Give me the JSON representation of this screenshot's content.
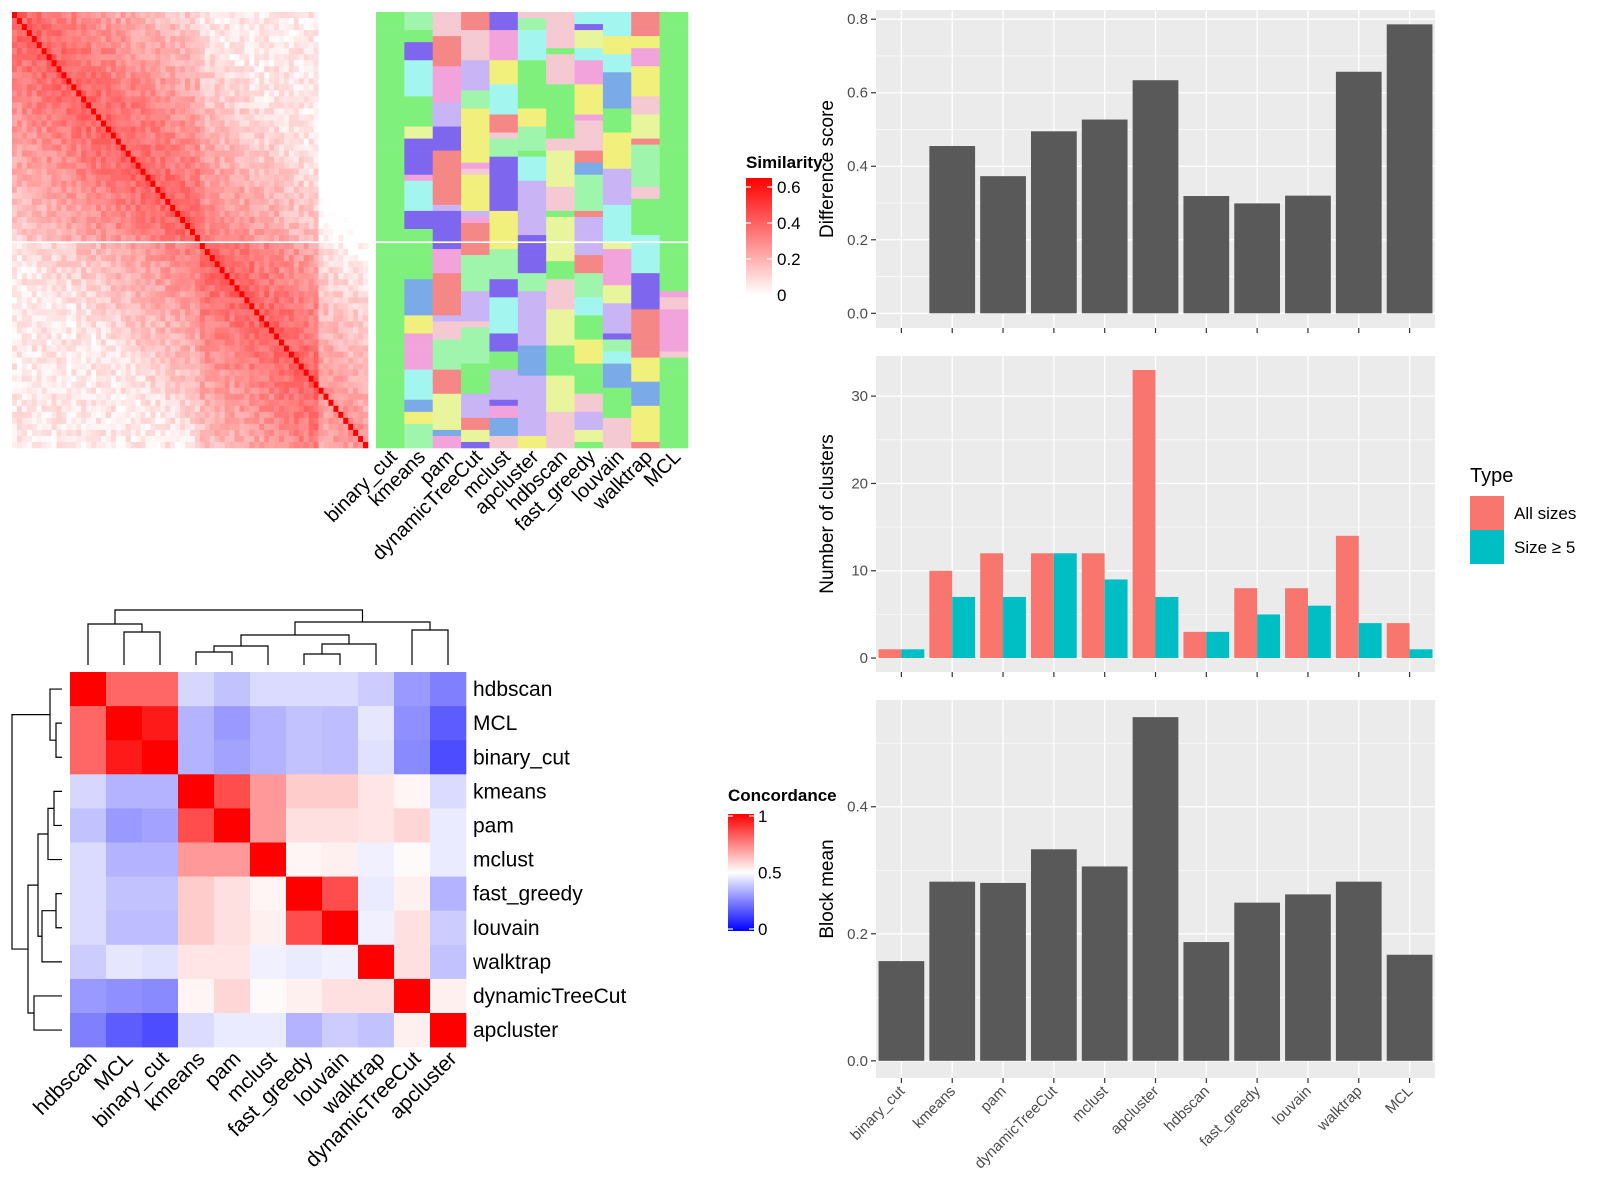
{
  "colors": {
    "panel_bg": "#ebebeb",
    "grid": "#ffffff",
    "bar_dark": "#595959",
    "all_sizes": "#f8766d",
    "size_ge5": "#00bfc4",
    "sim_high": "#ff0000",
    "conc_high": "#ff0000",
    "conc_low": "#0000ff",
    "conc_mid": "#ffffff"
  },
  "similarity_heatmap": {
    "legend_title": "Similarity",
    "legend_ticks": [
      "0",
      "0.2",
      "0.4",
      "0.6"
    ],
    "legend_values": [
      0,
      0.2,
      0.4,
      0.6
    ],
    "n_rows": 72,
    "split_after_row": 38
  },
  "cluster_annotation": {
    "columns": [
      "binary_cut",
      "kmeans",
      "pam",
      "dynamicTreeCut",
      "mclust",
      "apcluster",
      "hdbscan",
      "fast_greedy",
      "louvain",
      "walktrap",
      "MCL"
    ],
    "palette": [
      "#80f07c",
      "#e8f59c",
      "#f5c9d2",
      "#f2a3dc",
      "#a3f5f0",
      "#c9b4f5",
      "#7aabe8",
      "#f2f07c",
      "#f58787",
      "#7f66ee",
      "#9ef5ab"
    ]
  },
  "concordance_heatmap": {
    "legend_title": "Concordance",
    "legend_ticks": [
      "0",
      "0.5",
      "1"
    ],
    "legend_values": [
      0,
      0.5,
      1
    ],
    "methods": [
      "hdbscan",
      "MCL",
      "binary_cut",
      "kmeans",
      "pam",
      "mclust",
      "fast_greedy",
      "louvain",
      "walktrap",
      "dynamicTreeCut",
      "apcluster"
    ],
    "matrix": [
      [
        1.0,
        0.8,
        0.8,
        0.42,
        0.38,
        0.43,
        0.43,
        0.43,
        0.4,
        0.3,
        0.25
      ],
      [
        0.8,
        1.0,
        0.95,
        0.35,
        0.3,
        0.35,
        0.38,
        0.37,
        0.45,
        0.28,
        0.18
      ],
      [
        0.8,
        0.95,
        1.0,
        0.35,
        0.32,
        0.35,
        0.38,
        0.37,
        0.44,
        0.27,
        0.15
      ],
      [
        0.42,
        0.35,
        0.35,
        1.0,
        0.85,
        0.7,
        0.6,
        0.6,
        0.55,
        0.52,
        0.43
      ],
      [
        0.38,
        0.3,
        0.32,
        0.85,
        1.0,
        0.7,
        0.56,
        0.56,
        0.55,
        0.58,
        0.46
      ],
      [
        0.43,
        0.35,
        0.35,
        0.7,
        0.7,
        1.0,
        0.52,
        0.53,
        0.47,
        0.51,
        0.46
      ],
      [
        0.43,
        0.38,
        0.38,
        0.6,
        0.56,
        0.52,
        1.0,
        0.85,
        0.46,
        0.53,
        0.35
      ],
      [
        0.43,
        0.37,
        0.37,
        0.6,
        0.56,
        0.53,
        0.85,
        1.0,
        0.47,
        0.56,
        0.4
      ],
      [
        0.4,
        0.45,
        0.44,
        0.55,
        0.55,
        0.47,
        0.46,
        0.47,
        1.0,
        0.56,
        0.38
      ],
      [
        0.3,
        0.28,
        0.27,
        0.52,
        0.58,
        0.51,
        0.53,
        0.56,
        0.56,
        1.0,
        0.53
      ],
      [
        0.25,
        0.18,
        0.15,
        0.43,
        0.46,
        0.46,
        0.35,
        0.4,
        0.38,
        0.53,
        1.0
      ]
    ]
  },
  "chart_data": [
    {
      "type": "bar",
      "categories": [
        "binary_cut",
        "kmeans",
        "pam",
        "dynamicTreeCut",
        "mclust",
        "apcluster",
        "hdbscan",
        "fast_greedy",
        "louvain",
        "walktrap",
        "MCL"
      ],
      "values": [
        0,
        0.455,
        0.373,
        0.495,
        0.527,
        0.634,
        0.319,
        0.299,
        0.32,
        0.657,
        0.786
      ],
      "ylabel": "Difference score",
      "ylim": [
        -0.04,
        0.825
      ],
      "yticks": [
        0.0,
        0.2,
        0.4,
        0.6,
        0.8
      ],
      "ytick_labels": [
        "0.0",
        "0.2",
        "0.4",
        "0.6",
        "0.8"
      ],
      "grid": true
    },
    {
      "type": "bar",
      "categories": [
        "binary_cut",
        "kmeans",
        "pam",
        "dynamicTreeCut",
        "mclust",
        "apcluster",
        "hdbscan",
        "fast_greedy",
        "louvain",
        "walktrap",
        "MCL"
      ],
      "series": [
        {
          "name": "All sizes",
          "values": [
            1,
            10,
            12,
            12,
            12,
            33,
            3,
            8,
            8,
            14,
            4
          ]
        },
        {
          "name": "Size ≥ 5",
          "values": [
            1,
            7,
            7,
            12,
            9,
            7,
            3,
            5,
            6,
            4,
            1
          ]
        }
      ],
      "ylabel": "Number of clusters",
      "ylim": [
        -1.6,
        34.6
      ],
      "yticks": [
        0,
        10,
        20,
        30
      ],
      "ytick_labels": [
        "0",
        "10",
        "20",
        "30"
      ],
      "legend_title": "Type",
      "legend_position": "right",
      "grid": true
    },
    {
      "type": "bar",
      "categories": [
        "binary_cut",
        "kmeans",
        "pam",
        "dynamicTreeCut",
        "mclust",
        "apcluster",
        "hdbscan",
        "fast_greedy",
        "louvain",
        "walktrap",
        "MCL"
      ],
      "values": [
        0.157,
        0.282,
        0.28,
        0.333,
        0.306,
        0.541,
        0.187,
        0.249,
        0.262,
        0.282,
        0.167
      ],
      "ylabel": "Block mean",
      "ylim": [
        -0.027,
        0.568
      ],
      "yticks": [
        0.0,
        0.2,
        0.4
      ],
      "ytick_labels": [
        "0.0",
        "0.2",
        "0.4"
      ],
      "grid": true
    }
  ]
}
